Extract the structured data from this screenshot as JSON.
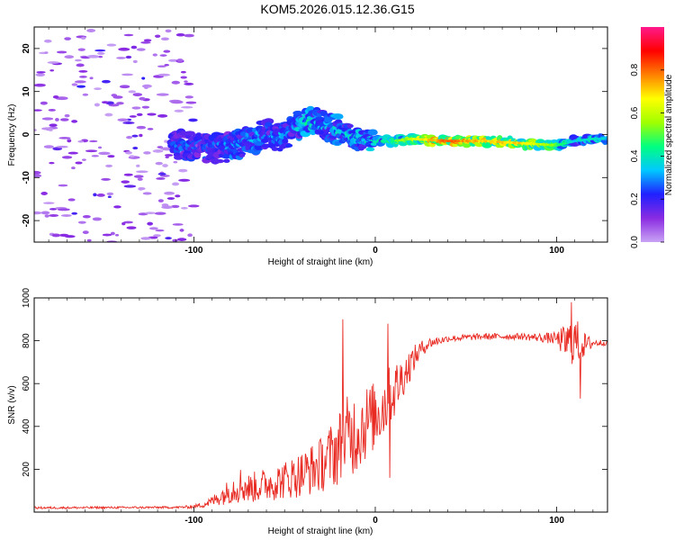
{
  "title": "KOM5.2026.015.12.36.G15",
  "colors": {
    "snr_line": "#e82a22",
    "axis": "#000000",
    "background": "#ffffff"
  },
  "chart_data": [
    {
      "type": "heatmap",
      "name": "spectrogram",
      "xlabel": "Height of straight line (km)",
      "ylabel": "Frequency (Hz)",
      "xlim": [
        -188,
        128
      ],
      "ylim": [
        -25,
        25
      ],
      "xticks": [
        -100,
        0,
        100
      ],
      "xtick_labels": [
        "-100",
        "0",
        "100"
      ],
      "yticks": [
        -20,
        -10,
        0,
        10,
        20
      ],
      "ytick_labels": [
        "-20",
        "-10",
        "0",
        "10",
        "20"
      ],
      "colorbar": {
        "label": "Normalized spectral amplitude",
        "range": [
          0,
          1
        ],
        "ticks": [
          0.0,
          0.2,
          0.4,
          0.6,
          0.8
        ],
        "tick_labels": [
          "0.0",
          "0.2",
          "0.4",
          "0.6",
          "0.8"
        ],
        "stops": [
          "#c9a3f5",
          "#8a2be2",
          "#2020ff",
          "#00c8ff",
          "#00ff80",
          "#a0ff00",
          "#ffff00",
          "#ff8000",
          "#ff0000",
          "#ff1a8c"
        ]
      },
      "ridge": {
        "x": [
          -100,
          -90,
          -80,
          -70,
          -60,
          -50,
          -40,
          -35,
          -30,
          -20,
          -10,
          0,
          10,
          20,
          40,
          60,
          80,
          100,
          110,
          120,
          128
        ],
        "freq": [
          -2.5,
          -3,
          -3,
          -1.5,
          0,
          -0.5,
          3,
          3,
          2.5,
          1,
          -1,
          -1.5,
          -1.5,
          -1,
          -1.5,
          -1.5,
          -2,
          -2.5,
          -1.5,
          -1,
          -1
        ],
        "amplitude": [
          0.25,
          0.25,
          0.28,
          0.3,
          0.3,
          0.3,
          0.35,
          0.4,
          0.3,
          0.35,
          0.35,
          0.4,
          0.45,
          0.6,
          0.8,
          0.7,
          0.7,
          0.5,
          0.35,
          0.4,
          0.35
        ]
      }
    },
    {
      "type": "line",
      "name": "snr",
      "xlabel": "Height of straight line (km)",
      "ylabel": "SNR (v/v)",
      "xlim": [
        -188,
        128
      ],
      "ylim": [
        0,
        1000
      ],
      "xticks": [
        -100,
        0,
        100
      ],
      "xtick_labels": [
        "-100",
        "0",
        "100"
      ],
      "yticks": [
        200,
        400,
        600,
        800,
        1000
      ],
      "ytick_labels": [
        "200",
        "400",
        "600",
        "800",
        "1000"
      ],
      "envelope": {
        "x": [
          -188,
          -110,
          -100,
          -95,
          -90,
          -80,
          -75,
          -70,
          -60,
          -50,
          -40,
          -30,
          -25,
          -20,
          -15,
          -10,
          -5,
          0,
          5,
          10,
          15,
          20,
          25,
          30,
          40,
          60,
          80,
          90,
          100,
          105,
          110,
          115,
          120,
          128
        ],
        "mean": [
          20,
          22,
          25,
          35,
          50,
          100,
          130,
          110,
          130,
          150,
          180,
          220,
          260,
          300,
          350,
          380,
          420,
          450,
          500,
          560,
          630,
          700,
          760,
          790,
          810,
          820,
          820,
          815,
          810,
          790,
          800,
          780,
          790,
          790
        ],
        "spread": [
          5,
          5,
          8,
          15,
          25,
          60,
          90,
          70,
          80,
          90,
          110,
          130,
          150,
          180,
          200,
          200,
          180,
          160,
          160,
          140,
          100,
          70,
          40,
          25,
          15,
          15,
          15,
          20,
          30,
          90,
          120,
          60,
          20,
          10
        ]
      },
      "spikes": [
        {
          "x": -18,
          "y": 900
        },
        {
          "x": 7,
          "y": 880
        },
        {
          "x": 8,
          "y": 160
        },
        {
          "x": 108,
          "y": 980
        },
        {
          "x": 113,
          "y": 530
        }
      ]
    }
  ]
}
